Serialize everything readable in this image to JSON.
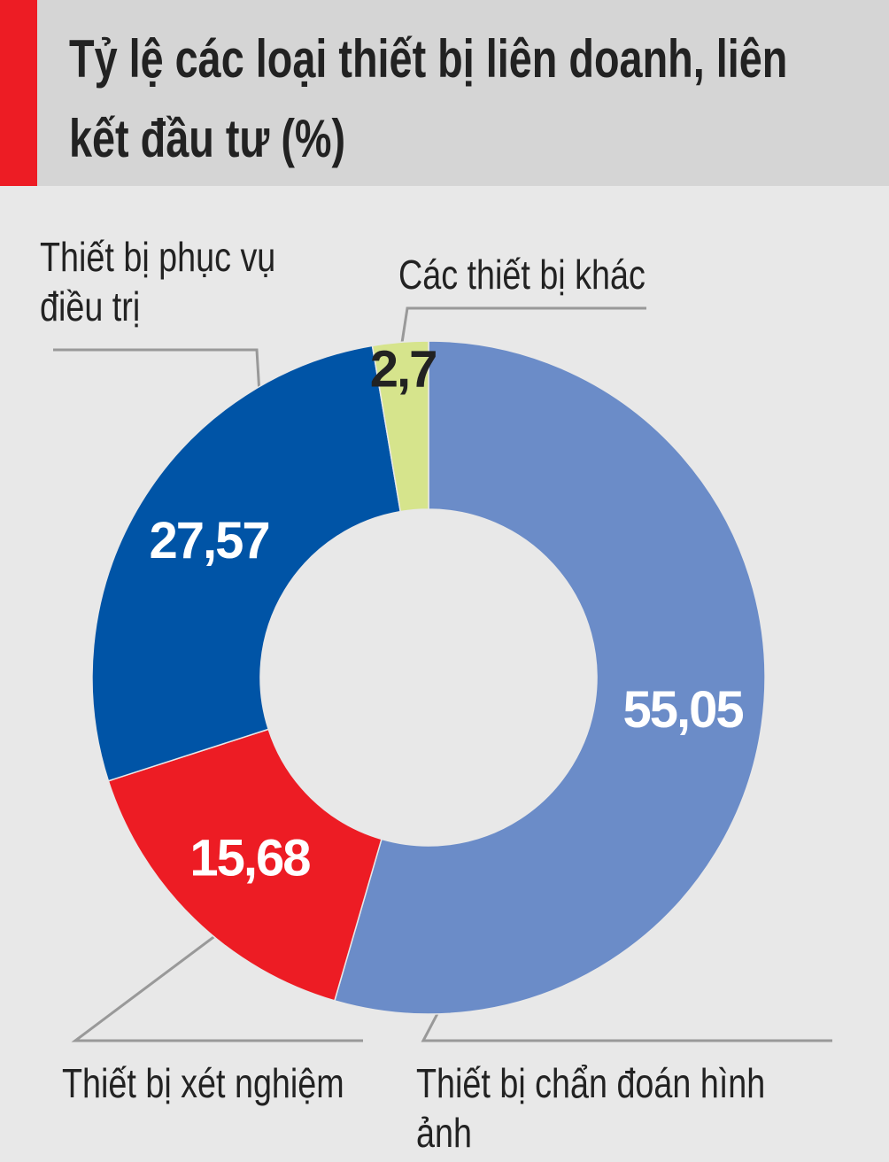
{
  "chart_data": {
    "type": "donut",
    "title": "Tỷ lệ các loại thiết bị liên doanh, liên kết đầu tư (%)",
    "categories": [
      "Thiết bị chẩn đoán hình ảnh",
      "Thiết bị xét nghiệm",
      "Thiết bị phục vụ điều trị",
      "Các thiết bị khác"
    ],
    "values": [
      55.05,
      15.68,
      27.57,
      2.7
    ],
    "value_labels": [
      "55,05",
      "15,68",
      "27,57",
      "2,7"
    ],
    "colors": [
      "#6b8cc8",
      "#ed1c24",
      "#0054a6",
      "#d6e48c"
    ]
  }
}
